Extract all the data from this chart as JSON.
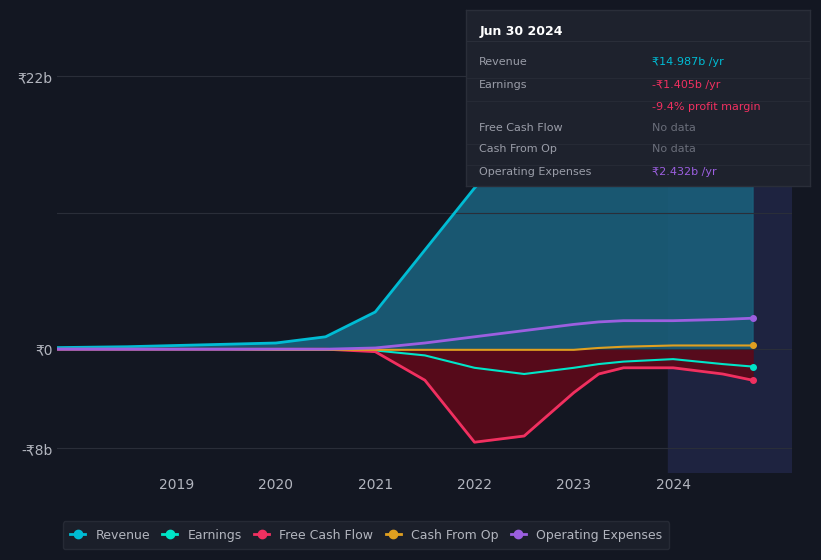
{
  "background_color": "#131722",
  "plot_bg_color": "#131722",
  "grid_color": "#2a2e39",
  "text_color": "#b2b5be",
  "ylim": [
    -10000000000.0,
    25000000000.0
  ],
  "ytick_labels": [
    "-₹8b",
    "₹0",
    "₹22b"
  ],
  "ytick_values": [
    -8000000000.0,
    0,
    22000000000.0
  ],
  "xticks": [
    2019,
    2020,
    2021,
    2022,
    2023,
    2024
  ],
  "xlim": [
    2017.8,
    2025.2
  ],
  "x": [
    2017.5,
    2018.0,
    2018.5,
    2019.0,
    2019.5,
    2020.0,
    2020.5,
    2021.0,
    2021.5,
    2022.0,
    2022.5,
    2023.0,
    2023.25,
    2023.5,
    2024.0,
    2024.5,
    2024.8
  ],
  "revenue": [
    0.1,
    0.15,
    0.2,
    0.3,
    0.4,
    0.5,
    1.0,
    3.0,
    8.0,
    13.0,
    17.0,
    20.5,
    21.5,
    20.0,
    16.0,
    14.5,
    15.0
  ],
  "earnings": [
    0.0,
    0.0,
    0.0,
    0.0,
    0.0,
    0.0,
    0.0,
    -0.1,
    -0.5,
    -1.5,
    -2.0,
    -1.5,
    -1.2,
    -1.0,
    -0.8,
    -1.2,
    -1.4
  ],
  "free_cash": [
    0.0,
    0.0,
    0.0,
    0.0,
    0.0,
    0.0,
    0.0,
    -0.2,
    -2.5,
    -7.5,
    -7.0,
    -3.5,
    -2.0,
    -1.5,
    -1.5,
    -2.0,
    -2.5
  ],
  "cash_from_op": [
    0.0,
    0.0,
    0.0,
    0.0,
    0.0,
    -0.05,
    -0.05,
    -0.05,
    -0.05,
    -0.05,
    -0.05,
    -0.05,
    0.1,
    0.2,
    0.3,
    0.3,
    0.3
  ],
  "op_expenses": [
    0.0,
    0.0,
    0.0,
    0.0,
    0.0,
    0.0,
    0.0,
    0.1,
    0.5,
    1.0,
    1.5,
    2.0,
    2.2,
    2.3,
    2.3,
    2.4,
    2.5
  ],
  "revenue_color": "#00bcd4",
  "revenue_fill": "#1a5f7a",
  "earnings_color": "#00e5c8",
  "free_cash_color": "#f03060",
  "free_cash_fill": "#5a0a1a",
  "cash_from_op_color": "#e0a020",
  "op_expenses_color": "#9c5fe0",
  "highlight_x_start": 2023.95,
  "highlight_color": "#1e2340",
  "legend_items": [
    {
      "label": "Revenue",
      "color": "#00bcd4"
    },
    {
      "label": "Earnings",
      "color": "#00e5c8"
    },
    {
      "label": "Free Cash Flow",
      "color": "#f03060"
    },
    {
      "label": "Cash From Op",
      "color": "#e0a020"
    },
    {
      "label": "Operating Expenses",
      "color": "#9c5fe0"
    }
  ],
  "tooltip": {
    "date": "Jun 30 2024",
    "rows": [
      {
        "label": "Revenue",
        "value": "₹14.987b /yr",
        "value_color": "#00bcd4"
      },
      {
        "label": "Earnings",
        "value": "-₹1.405b /yr",
        "value_color": "#f03060"
      },
      {
        "label": "",
        "value": "-9.4% profit margin",
        "value_color": "#f03060"
      },
      {
        "label": "Free Cash Flow",
        "value": "No data",
        "value_color": "#6a6e7a"
      },
      {
        "label": "Cash From Op",
        "value": "No data",
        "value_color": "#6a6e7a"
      },
      {
        "label": "Operating Expenses",
        "value": "₹2.432b /yr",
        "value_color": "#9c5fe0"
      }
    ]
  }
}
